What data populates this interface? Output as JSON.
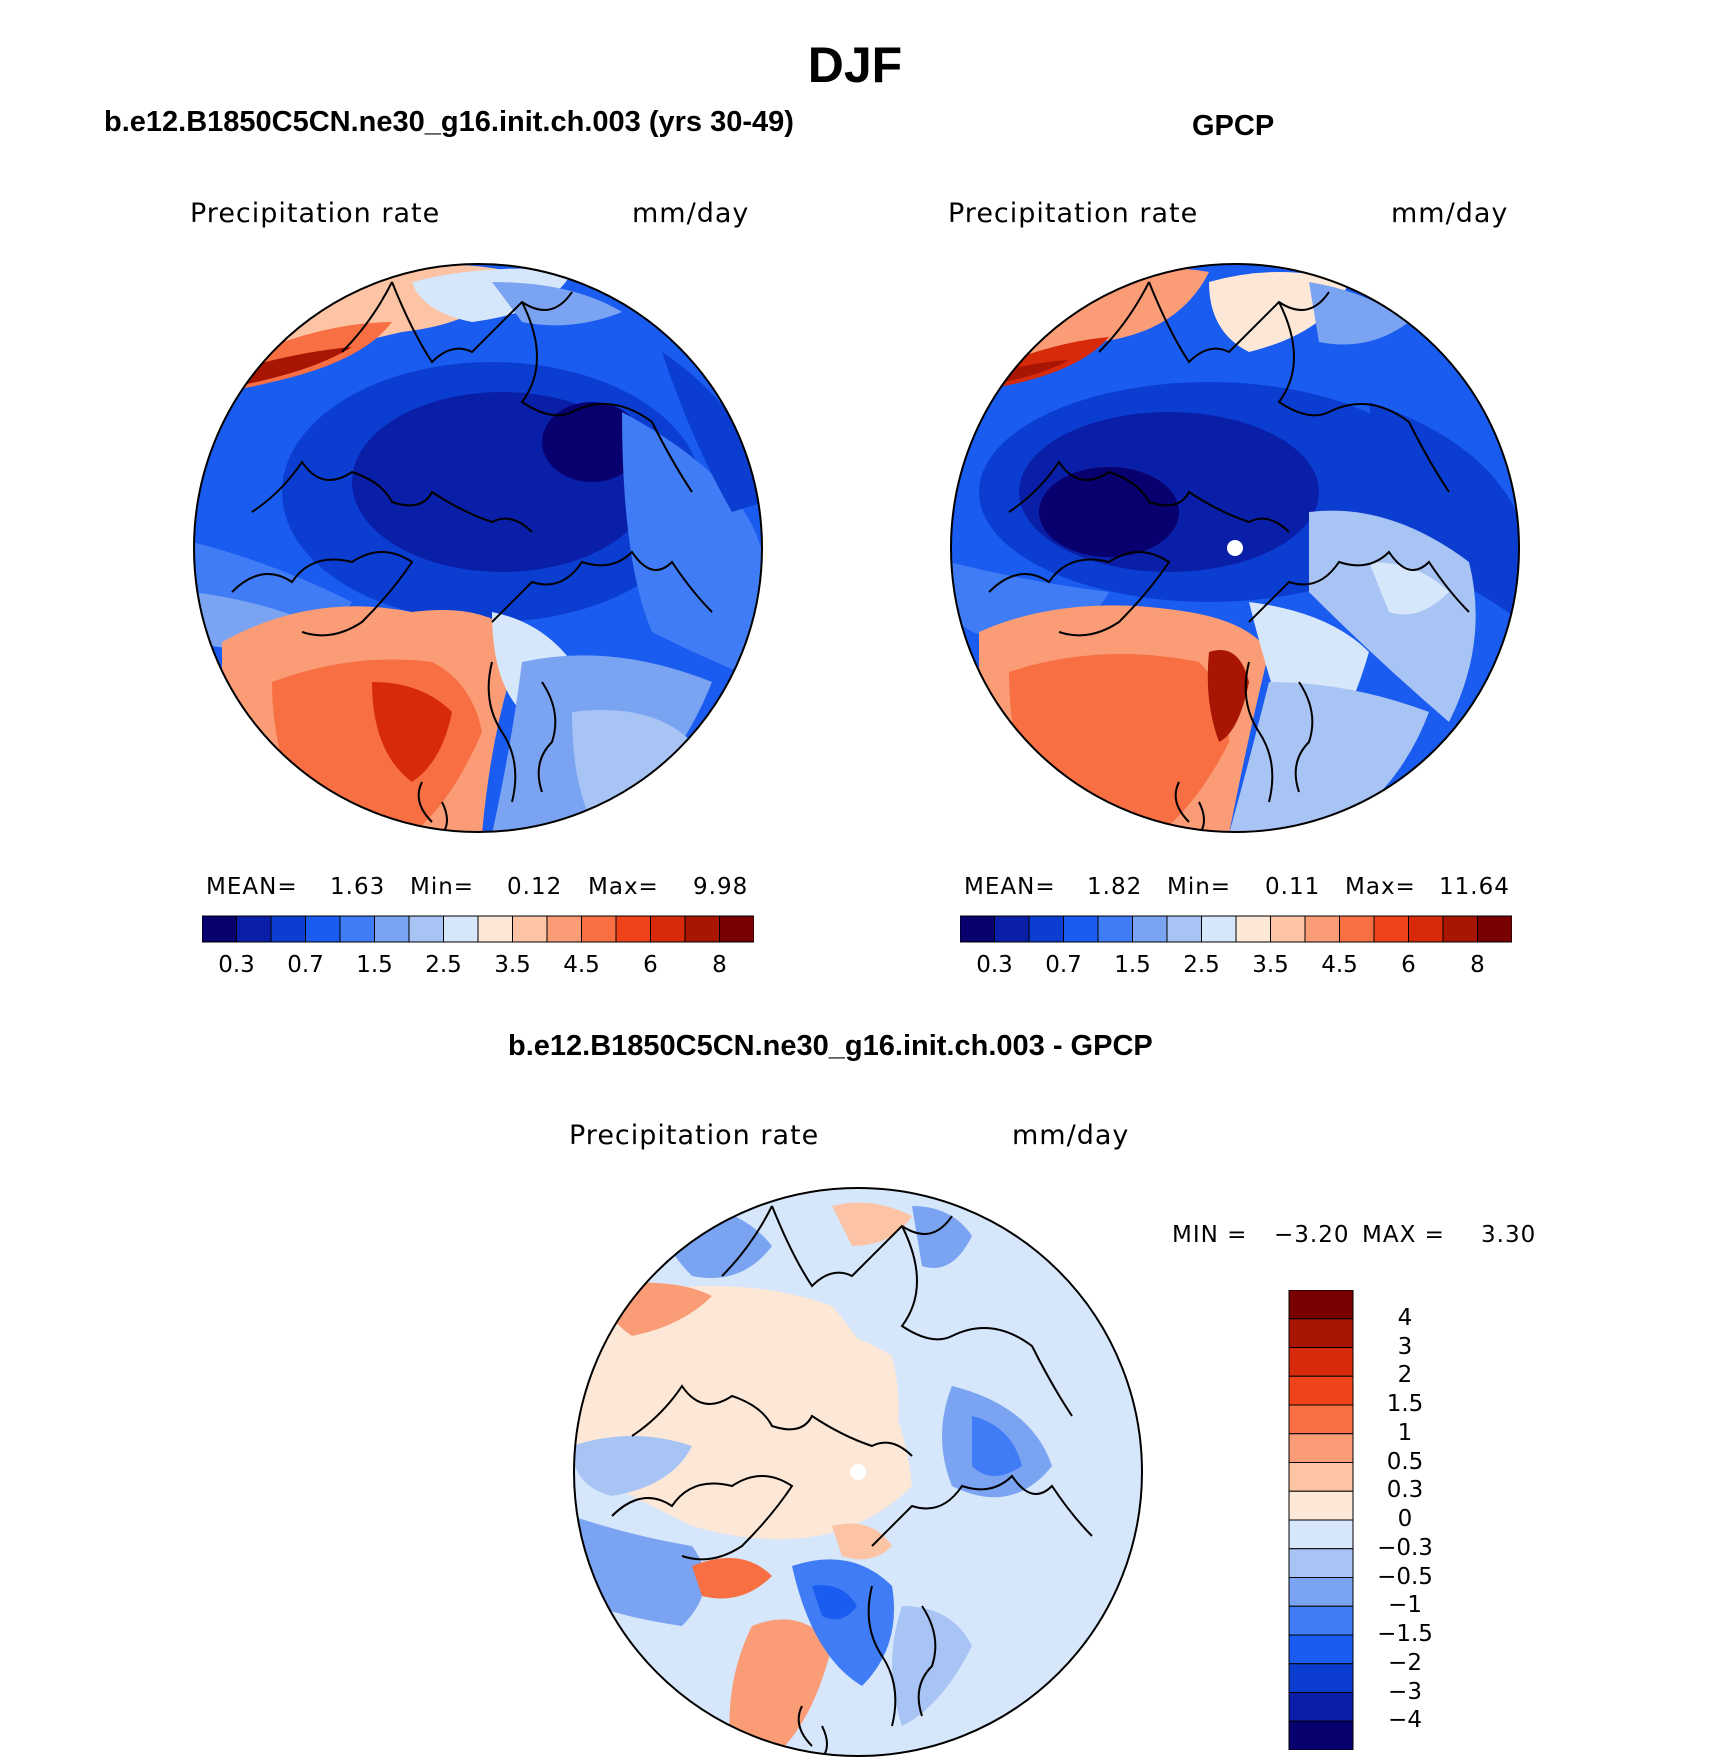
{
  "figure": {
    "season_title": "DJF",
    "colors": {
      "abs_scale": [
        "#08006e",
        "#0a1fa8",
        "#0b3dd1",
        "#1a5cf0",
        "#3f7cf5",
        "#7aa3f2",
        "#a8c4f5",
        "#d6e6fb",
        "#fde8d8",
        "#fcc4a4",
        "#fa9d77",
        "#f76f42",
        "#f0431c",
        "#d62a0a",
        "#a81503",
        "#780000"
      ],
      "diff_scale": [
        "#08006e",
        "#0a1fa8",
        "#0b3dd1",
        "#1a5cf0",
        "#3f7cf5",
        "#7aa3f2",
        "#a8c4f5",
        "#d6e6fb",
        "#fde8d8",
        "#fcc4a4",
        "#fa9d77",
        "#f76f42",
        "#f0431c",
        "#d62a0a",
        "#a81503",
        "#780000"
      ]
    }
  },
  "panels": {
    "model": {
      "title": "b.e12.B1850C5CN.ne30_g16.init.ch.003 (yrs 30-49)",
      "variable": "Precipitation rate",
      "units": "mm/day",
      "stats": {
        "mean_label": "MEAN=",
        "mean": "1.63",
        "min_label": "Min=",
        "min": "0.12",
        "max_label": "Max=",
        "max": "9.98"
      },
      "colorbar_ticks": [
        "0.3",
        "0.7",
        "1.5",
        "2.5",
        "3.5",
        "4.5",
        "6",
        "8"
      ]
    },
    "obs": {
      "title": "GPCP",
      "variable": "Precipitation rate",
      "units": "mm/day",
      "stats": {
        "mean_label": "MEAN=",
        "mean": "1.82",
        "min_label": "Min=",
        "min": "0.11",
        "max_label": "Max=",
        "max": "11.64"
      },
      "colorbar_ticks": [
        "0.3",
        "0.7",
        "1.5",
        "2.5",
        "3.5",
        "4.5",
        "6",
        "8"
      ]
    },
    "diff": {
      "title": "b.e12.B1850C5CN.ne30_g16.init.ch.003 - GPCP",
      "variable": "Precipitation rate",
      "units": "mm/day",
      "stats": {
        "min_label": "MIN =",
        "min": "−3.20",
        "max_label": "MAX =",
        "max": "3.30"
      },
      "colorbar_ticks": [
        "4",
        "3",
        "2",
        "1.5",
        "1",
        "0.5",
        "0.3",
        "0",
        "−0.3",
        "−0.5",
        "−1",
        "−1.5",
        "−2",
        "−3",
        "−4"
      ]
    }
  }
}
